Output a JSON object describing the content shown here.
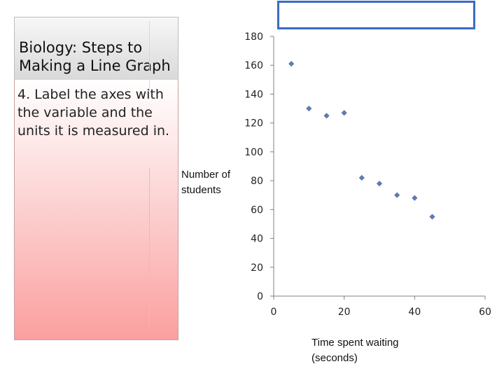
{
  "slide": {
    "title_line1": "Biology: Steps to",
    "title_line2": "Making a Line Graph",
    "step_text": " 4. Label the axes with the variable and the units it is measured in."
  },
  "chart_data": {
    "type": "scatter",
    "title": "",
    "xlabel": "Time spent waiting (seconds)",
    "ylabel": "Number of students",
    "xlim": [
      0,
      60
    ],
    "ylim": [
      0,
      180
    ],
    "xticks": [
      0,
      20,
      40,
      60
    ],
    "yticks": [
      0,
      20,
      40,
      60,
      80,
      100,
      120,
      140,
      160,
      180
    ],
    "grid": false,
    "marker_color": "#5b7fb5",
    "points": [
      {
        "x": 5,
        "y": 161
      },
      {
        "x": 10,
        "y": 130
      },
      {
        "x": 15,
        "y": 125
      },
      {
        "x": 20,
        "y": 127
      },
      {
        "x": 25,
        "y": 82
      },
      {
        "x": 30,
        "y": 78
      },
      {
        "x": 35,
        "y": 70
      },
      {
        "x": 40,
        "y": 68
      },
      {
        "x": 45,
        "y": 55
      }
    ]
  }
}
